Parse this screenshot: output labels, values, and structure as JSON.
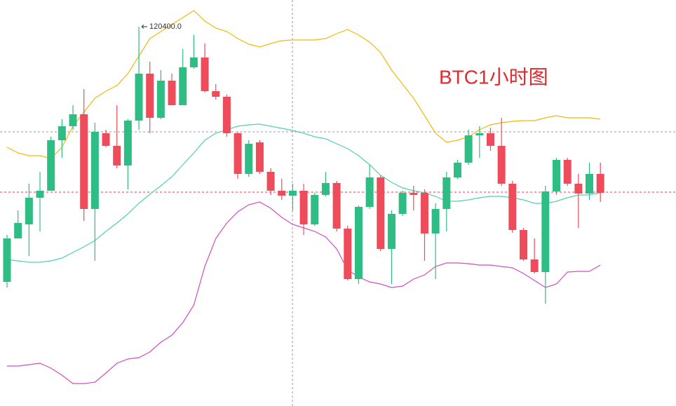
{
  "chart_data": {
    "type": "candlestick",
    "title": "BTC1小时图",
    "annotation": {
      "text": "120400.0",
      "value": 120400
    },
    "ylim": [
      114990,
      120780
    ],
    "up_color": "#2ebd85",
    "down_color": "#ef4c5b",
    "open": [
      116760,
      117380,
      117580,
      117960,
      118060,
      118780,
      118980,
      119150,
      117800,
      118880,
      118700,
      118420,
      119060,
      119730,
      119100,
      119630,
      119280,
      119820,
      119960,
      119480,
      119400,
      118880,
      118300,
      118750,
      118330,
      118060,
      117990,
      118060,
      117580,
      118000,
      118170,
      117520,
      116800,
      117830,
      118250,
      117230,
      117730,
      118030,
      118030,
      117450,
      117800,
      118250,
      118460,
      118850,
      118880,
      118700,
      118160,
      117500,
      117080,
      116900,
      118050,
      118500,
      118160,
      118020,
      118300
    ],
    "high": [
      117430,
      117780,
      118160,
      118330,
      118830,
      119080,
      119280,
      119510,
      119030,
      118930,
      119280,
      119080,
      120400,
      119900,
      119780,
      119730,
      120080,
      120280,
      120160,
      119580,
      119430,
      118900,
      118780,
      118780,
      118380,
      118230,
      118160,
      118160,
      118030,
      118330,
      118200,
      117560,
      117850,
      118430,
      118280,
      117780,
      118060,
      118130,
      118080,
      117880,
      118330,
      118500,
      118930,
      118980,
      118960,
      119100,
      118200,
      117530,
      117380,
      118130,
      118530,
      118530,
      118300,
      118460,
      118460
    ],
    "low": [
      116680,
      117380,
      117130,
      117480,
      118060,
      118530,
      118930,
      117630,
      117060,
      118680,
      118380,
      118080,
      118930,
      118880,
      119080,
      119280,
      119280,
      119800,
      119460,
      119360,
      118830,
      118230,
      118260,
      118300,
      118000,
      117930,
      117780,
      117430,
      117560,
      117980,
      117480,
      116780,
      116730,
      117800,
      117200,
      116730,
      117700,
      117780,
      117060,
      116800,
      117480,
      118230,
      118430,
      118530,
      118630,
      118130,
      117460,
      117060,
      116880,
      116450,
      118000,
      118130,
      117530,
      117930,
      117900
    ],
    "close": [
      117380,
      117600,
      117960,
      118060,
      118780,
      118980,
      119150,
      117800,
      118900,
      118700,
      118420,
      119060,
      119730,
      119100,
      119630,
      119280,
      119820,
      119960,
      119480,
      119400,
      118880,
      118300,
      118730,
      118330,
      118060,
      117990,
      118060,
      117580,
      118000,
      118170,
      117520,
      116800,
      117830,
      118250,
      117230,
      117730,
      118030,
      118000,
      117450,
      117800,
      118250,
      118460,
      118850,
      118880,
      118700,
      118160,
      117500,
      117080,
      116900,
      118050,
      118500,
      118160,
      118020,
      118300,
      118030
    ],
    "bands": [
      {
        "color": "#f0b90b",
        "values": [
          118680,
          118600,
          118560,
          118560,
          118520,
          118680,
          118980,
          119180,
          119380,
          119480,
          119560,
          119730,
          119980,
          120230,
          120330,
          120430,
          120530,
          120630,
          120480,
          120380,
          120330,
          120230,
          120150,
          120110,
          120160,
          120200,
          120210,
          120210,
          120210,
          120230,
          120300,
          120360,
          120280,
          120180,
          120030,
          119780,
          119580,
          119380,
          119130,
          118880,
          118750,
          118780,
          118830,
          118930,
          119000,
          119030,
          119050,
          119060,
          119060,
          119100,
          119130,
          119100,
          119100,
          119100,
          119080
        ]
      },
      {
        "color": "#4fd1b0",
        "values": [
          117080,
          117060,
          117040,
          117040,
          117060,
          117100,
          117180,
          117260,
          117350,
          117480,
          117600,
          117730,
          117880,
          118010,
          118130,
          118260,
          118430,
          118600,
          118780,
          118880,
          118930,
          118980,
          119000,
          119010,
          118980,
          118950,
          118920,
          118880,
          118830,
          118800,
          118730,
          118660,
          118560,
          118430,
          118280,
          118180,
          118100,
          118060,
          118030,
          117980,
          117910,
          117910,
          117930,
          117960,
          117980,
          117980,
          117960,
          117930,
          117880,
          117880,
          117910,
          117960,
          118000,
          118000,
          118030
        ]
      },
      {
        "color": "#d14fc0",
        "values": [
          115560,
          115560,
          115580,
          115600,
          115530,
          115430,
          115310,
          115310,
          115330,
          115460,
          115600,
          115660,
          115680,
          115760,
          115900,
          116000,
          116180,
          116430,
          116980,
          117380,
          117600,
          117760,
          117860,
          117900,
          117810,
          117680,
          117580,
          117530,
          117480,
          117400,
          117230,
          116930,
          116830,
          116760,
          116730,
          116680,
          116700,
          116800,
          116860,
          116980,
          117030,
          117030,
          117020,
          117000,
          117000,
          116980,
          116960,
          116880,
          116780,
          116680,
          116730,
          116900,
          116910,
          116910,
          117000
        ]
      }
    ]
  }
}
